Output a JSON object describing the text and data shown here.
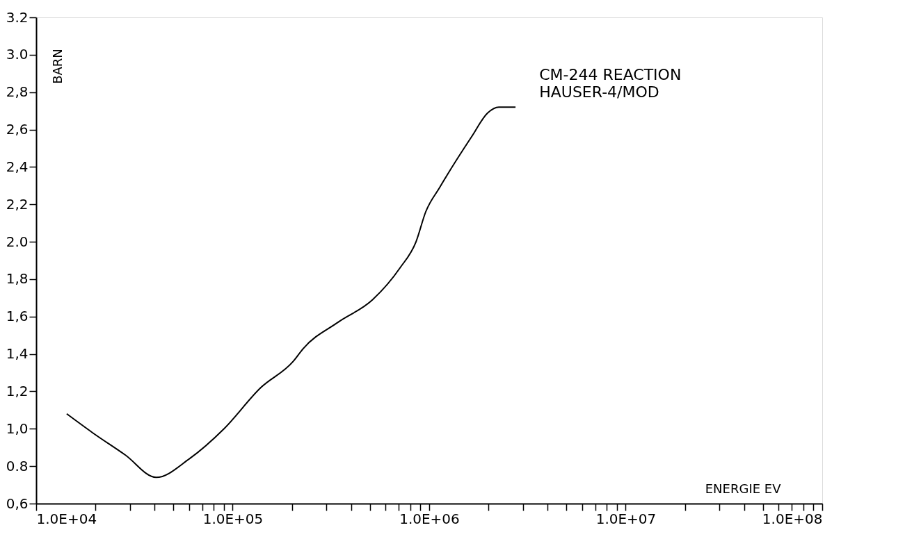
{
  "chart_data": {
    "type": "line",
    "xlabel": "ENERGIE EV",
    "ylabel": "BARN",
    "annotations": [
      "CM-244 REACTION",
      "HAUSER-4/MOD"
    ],
    "log": "x",
    "xlim": [
      10000,
      100000000
    ],
    "ylim": [
      0.6,
      3.2
    ],
    "xticks": [
      {
        "value": 10000,
        "label": "1.0E+04"
      },
      {
        "value": 20000,
        "label": null
      },
      {
        "value": 30000,
        "label": null
      },
      {
        "value": 40000,
        "label": null
      },
      {
        "value": 50000,
        "label": null
      },
      {
        "value": 60000,
        "label": null
      },
      {
        "value": 70000,
        "label": null
      },
      {
        "value": 80000,
        "label": null
      },
      {
        "value": 90000,
        "label": null
      },
      {
        "value": 100000,
        "label": "1.0E+05"
      },
      {
        "value": 200000,
        "label": null
      },
      {
        "value": 300000,
        "label": null
      },
      {
        "value": 400000,
        "label": null
      },
      {
        "value": 500000,
        "label": null
      },
      {
        "value": 600000,
        "label": null
      },
      {
        "value": 700000,
        "label": null
      },
      {
        "value": 800000,
        "label": null
      },
      {
        "value": 900000,
        "label": null
      },
      {
        "value": 1000000,
        "label": "1.0E+06"
      },
      {
        "value": 2000000,
        "label": null
      },
      {
        "value": 3000000,
        "label": null
      },
      {
        "value": 4000000,
        "label": null
      },
      {
        "value": 5000000,
        "label": null
      },
      {
        "value": 6000000,
        "label": null
      },
      {
        "value": 7000000,
        "label": null
      },
      {
        "value": 8000000,
        "label": null
      },
      {
        "value": 9000000,
        "label": null
      },
      {
        "value": 10000000,
        "label": "1.0E+07"
      },
      {
        "value": 20000000,
        "label": null
      },
      {
        "value": 30000000,
        "label": null
      },
      {
        "value": 40000000,
        "label": null
      },
      {
        "value": 50000000,
        "label": null
      },
      {
        "value": 60000000,
        "label": null
      },
      {
        "value": 70000000,
        "label": null
      },
      {
        "value": 80000000,
        "label": null
      },
      {
        "value": 90000000,
        "label": null
      },
      {
        "value": 100000000,
        "label": "1.0E+08"
      }
    ],
    "yticks": [
      {
        "value": 0.6,
        "label": "0,6"
      },
      {
        "value": 0.8,
        "label": "0.8"
      },
      {
        "value": 1.0,
        "label": "1,0"
      },
      {
        "value": 1.2,
        "label": "1,2"
      },
      {
        "value": 1.4,
        "label": "1,4"
      },
      {
        "value": 1.6,
        "label": "1,6"
      },
      {
        "value": 1.8,
        "label": "1,8"
      },
      {
        "value": 2.0,
        "label": "2.0"
      },
      {
        "value": 2.2,
        "label": "2,2"
      },
      {
        "value": 2.4,
        "label": "2,4"
      },
      {
        "value": 2.6,
        "label": "2,6"
      },
      {
        "value": 2.8,
        "label": "2,8"
      },
      {
        "value": 3.0,
        "label": "3.0"
      },
      {
        "value": 3.2,
        "label": "3.2"
      }
    ],
    "grid": false,
    "line_style": "solid",
    "marker": "none",
    "series": [
      {
        "color": "#000000",
        "x": [
          14300,
          19300,
          28400,
          40800,
          60300,
          90400,
          139000,
          203000,
          229000,
          344000,
          515000,
          710000,
          857000,
          960000,
          1130000,
          1640000,
          1990000,
          2260000,
          2750000
        ],
        "values": [
          1.08,
          0.98,
          0.86,
          0.74,
          0.84,
          1.0,
          1.22,
          1.36,
          1.43,
          1.57,
          1.69,
          1.86,
          2.0,
          2.16,
          2.29,
          2.56,
          2.69,
          2.72,
          2.72
        ]
      }
    ]
  }
}
